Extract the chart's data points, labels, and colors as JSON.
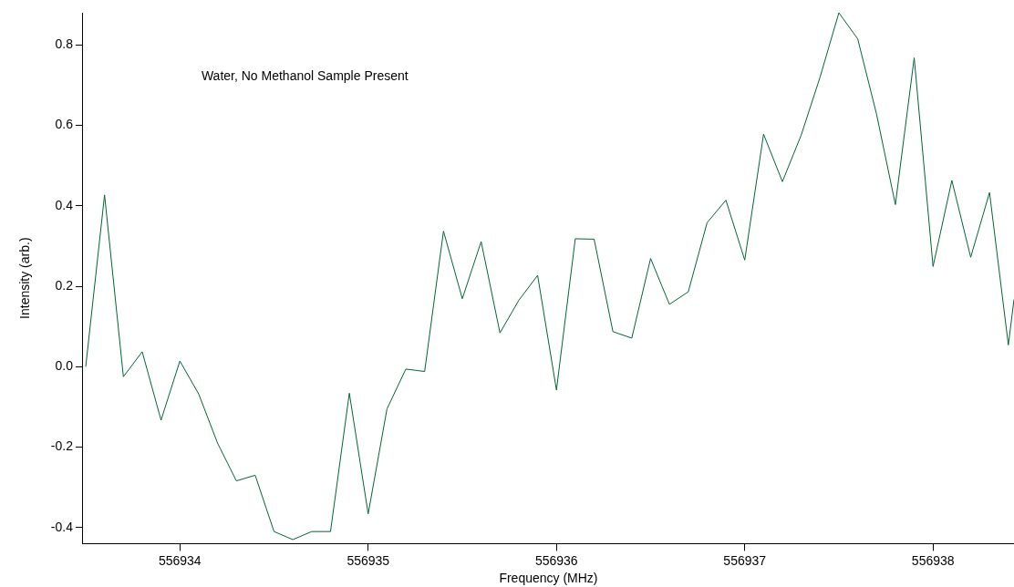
{
  "chart_data": {
    "type": "line",
    "xlabel": "Frequency (MHz)",
    "ylabel": "Intensity (arb.)",
    "annotations": [
      "Water, No Methanol Sample Present"
    ],
    "x": [
      556933.5,
      556933.6,
      556933.7,
      556933.8,
      556933.9,
      556934.0,
      556934.1,
      556934.2,
      556934.3,
      556934.4,
      556934.5,
      556934.6,
      556934.7,
      556934.8,
      556934.9,
      556935.0,
      556935.1,
      556935.2,
      556935.3,
      556935.4,
      556935.5,
      556935.6,
      556935.7,
      556935.8,
      556935.9,
      556936.0,
      556936.1,
      556936.2,
      556936.3,
      556936.4,
      556936.5,
      556936.6,
      556936.7,
      556936.8,
      556936.9,
      556937.0,
      556937.1,
      556937.2,
      556937.3,
      556937.4,
      556937.5,
      556937.6,
      556937.7,
      556937.8,
      556937.9,
      556938.0,
      556938.1,
      556938.2,
      556938.3,
      556938.4,
      556938.43
    ],
    "series": [
      {
        "color": "#006633",
        "values": [
          0.0,
          0.427,
          -0.025,
          0.037,
          -0.133,
          0.014,
          -0.068,
          -0.19,
          -0.284,
          -0.27,
          -0.41,
          -0.43,
          -0.41,
          -0.41,
          -0.066,
          -0.366,
          -0.105,
          -0.006,
          -0.012,
          0.337,
          0.169,
          0.311,
          0.084,
          0.165,
          0.227,
          -0.058,
          0.318,
          0.317,
          0.087,
          0.071,
          0.269,
          0.155,
          0.186,
          0.358,
          0.414,
          0.265,
          0.578,
          0.46,
          0.576,
          0.72,
          0.88,
          0.815,
          0.628,
          0.403,
          0.768,
          0.249,
          0.463,
          0.272,
          0.433,
          0.054,
          0.167
        ]
      }
    ],
    "xlim": [
      556933.485,
      556938.43
    ],
    "xticks": [
      556934,
      556935,
      556936,
      556937,
      556938
    ],
    "ylim": [
      -0.44,
      0.88
    ],
    "yticks": [
      {
        "value": -0.4,
        "label": "-0.4"
      },
      {
        "value": -0.2,
        "label": "-0.2"
      },
      {
        "value": 0,
        "label": "0.0"
      },
      {
        "value": 0.2,
        "label": "0.2"
      },
      {
        "value": 0.4,
        "label": "0.4"
      },
      {
        "value": 0.6,
        "label": "0.6"
      },
      {
        "value": 0.8,
        "label": "0.8"
      }
    ],
    "grid": false,
    "legend": false,
    "marker": "none",
    "line_style": "solid"
  }
}
